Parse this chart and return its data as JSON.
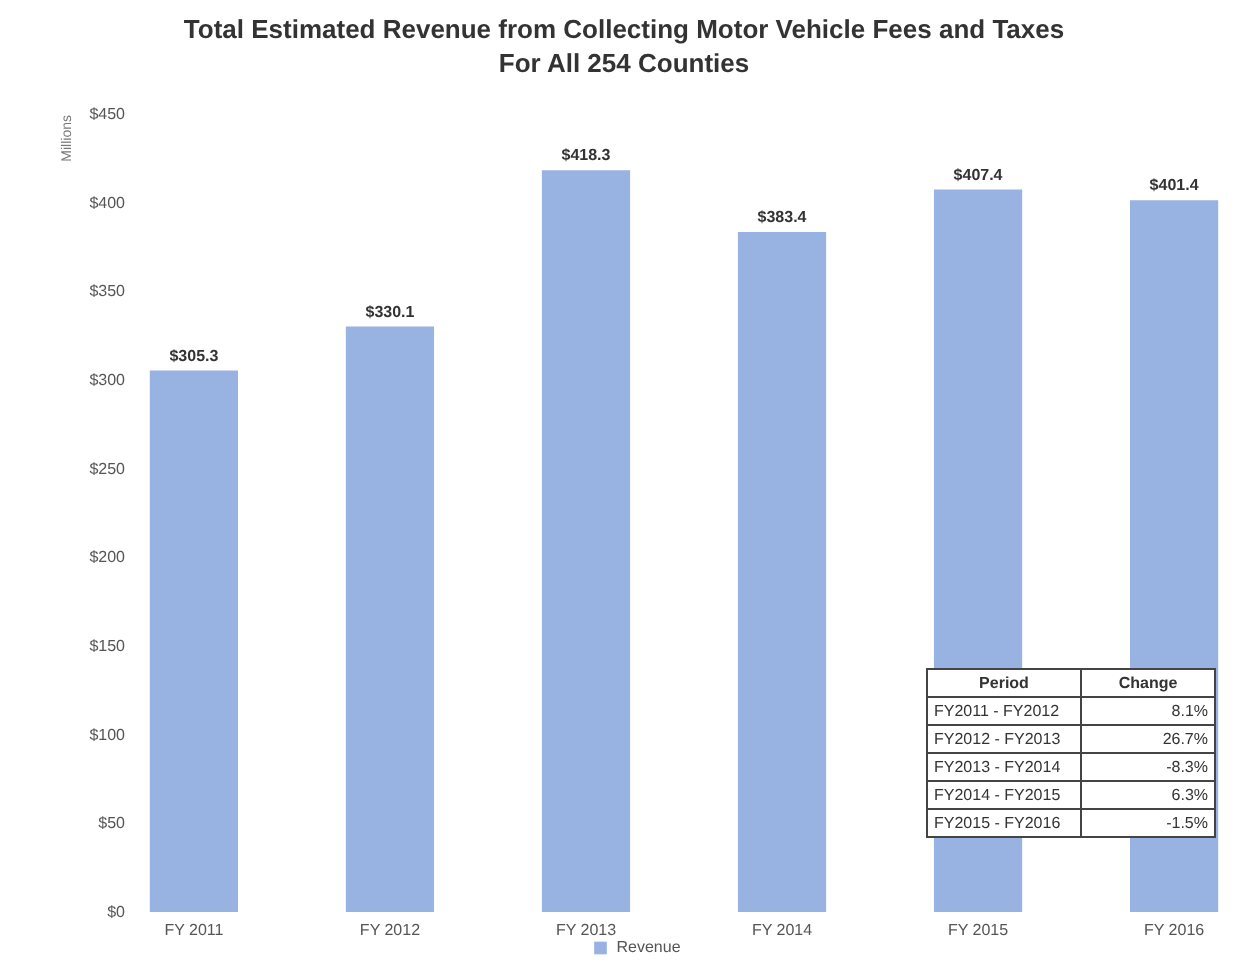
{
  "chart_data": {
    "type": "bar",
    "title": "Total Estimated Revenue from Collecting Motor Vehicle Fees and Taxes For All 254 Counties",
    "ylabel": "Millions",
    "categories": [
      "FY 2011",
      "FY 2012",
      "FY 2013",
      "FY 2014",
      "FY 2015",
      "FY 2016"
    ],
    "series": [
      {
        "name": "Revenue",
        "color": "#98b2e2",
        "values": [
          305.3,
          330.1,
          418.3,
          383.4,
          407.4,
          401.4
        ],
        "value_labels": [
          "$305.3",
          "$330.1",
          "$418.3",
          "$383.4",
          "$407.4",
          "$401.4"
        ]
      }
    ],
    "ylim": [
      0,
      450
    ],
    "yticks": [
      {
        "value": 0,
        "label": "$0"
      },
      {
        "value": 50,
        "label": "$50"
      },
      {
        "value": 100,
        "label": "$100"
      },
      {
        "value": 150,
        "label": "$150"
      },
      {
        "value": 200,
        "label": "$200"
      },
      {
        "value": 250,
        "label": "$250"
      },
      {
        "value": 300,
        "label": "$300"
      },
      {
        "value": 350,
        "label": "$350"
      },
      {
        "value": 400,
        "label": "$400"
      },
      {
        "value": 450,
        "label": "$450"
      }
    ],
    "grid": false,
    "legend": "bottom",
    "annotations": [
      "Period",
      "Change",
      "FY2011 - FY2012",
      "8.1%",
      "FY2012 - FY2013",
      "26.7%",
      "FY2013 - FY2014",
      "-8.3%",
      "FY2014 - FY2015",
      "6.3%",
      "FY2015 - FY2016",
      "-1.5%"
    ]
  }
}
